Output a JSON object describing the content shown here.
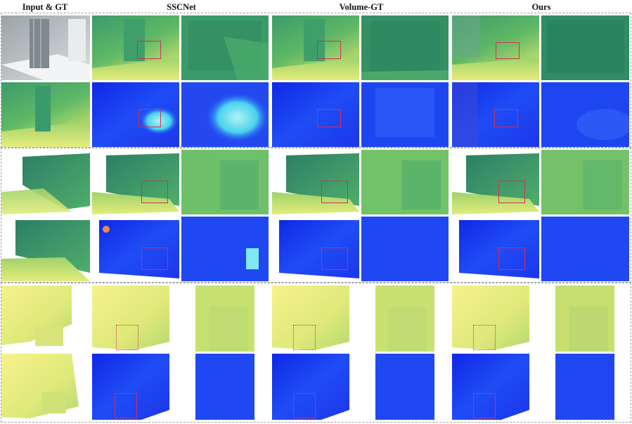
{
  "columns": {
    "input_gt": "Input & GT",
    "sscnet": "SSCNet",
    "volume_gt": "Volume-GT",
    "ours": "Ours"
  },
  "colors": {
    "depth_near": "#f4f08a",
    "depth_mid": "#7ccf6a",
    "depth_far": "#2e8f6c",
    "normal_blue": "#1a3cf0",
    "normal_cyan": "#6fe7f0",
    "zoom_box": "#d0305a",
    "dashed_border": "#a0a0a0"
  }
}
